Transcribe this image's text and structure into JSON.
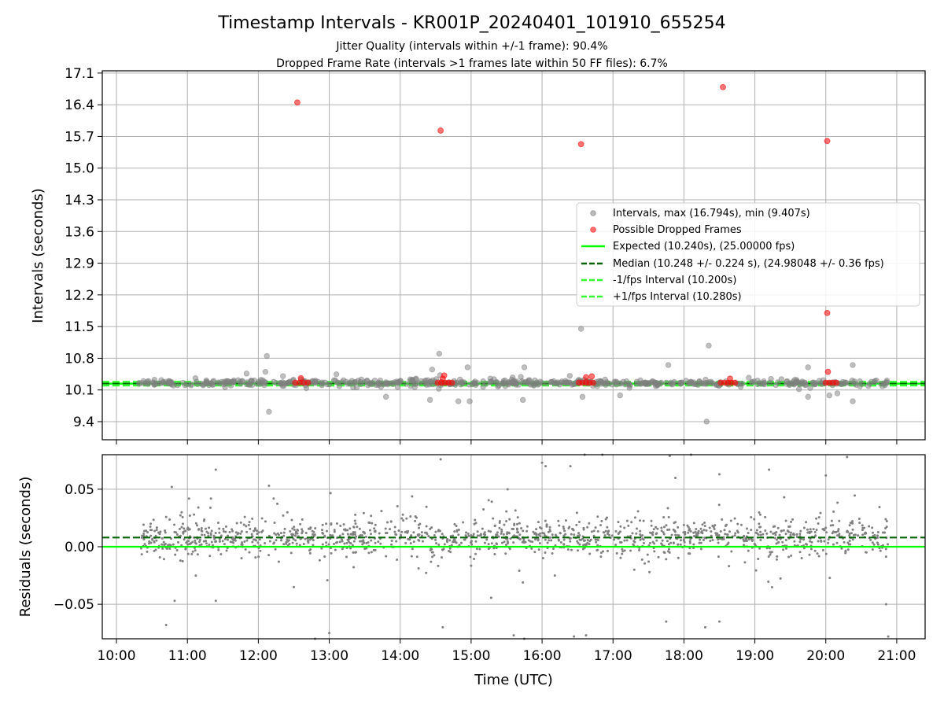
{
  "figure": {
    "title": "Timestamp Intervals - KR001P_20240401_101910_655254",
    "subtitle1": "Jitter Quality (intervals within +/-1 frame): 90.4%",
    "subtitle2": "Dropped Frame Rate (intervals >1 frames late within 50 FF files): 6.7%"
  },
  "chart_data": [
    {
      "type": "scatter",
      "panel": "top",
      "xlabel": "",
      "ylabel": "Intervals (seconds)",
      "x_unit": "hours UTC",
      "xlim": [
        9.8,
        21.4
      ],
      "ylim": [
        9.0,
        17.15
      ],
      "yticks": [
        "9.4",
        "10.1",
        "10.8",
        "11.5",
        "12.2",
        "12.9",
        "13.6",
        "14.3",
        "15.0",
        "15.7",
        "16.4",
        "17.1"
      ],
      "grid": true,
      "legend_position": "center-right",
      "legend": [
        {
          "label": "Intervals, max (16.794s), min (9.407s)",
          "kind": "marker",
          "color": "#808080"
        },
        {
          "label": "Possible Dropped Frames",
          "kind": "marker",
          "color": "#ff0000"
        },
        {
          "label": "Expected (10.240s), (25.00000 fps)",
          "kind": "solid",
          "color": "#00ff00"
        },
        {
          "label": "Median (10.248 +/- 0.224 s), (24.98048 +/- 0.36 fps)",
          "kind": "dashed",
          "color": "#006400"
        },
        {
          "label": "-1/fps Interval (10.200s)",
          "kind": "dashed",
          "color": "#32ff32"
        },
        {
          "label": "+1/fps Interval (10.280s)",
          "kind": "dashed",
          "color": "#32ff32"
        }
      ],
      "lines": [
        {
          "name": "expected",
          "y": 10.24,
          "style": "solid",
          "color": "#00ff00"
        },
        {
          "name": "median",
          "y": 10.248,
          "style": "dashed",
          "color": "#006400"
        },
        {
          "name": "minus-1fps",
          "y": 10.2,
          "style": "dashed",
          "color": "#32ff32"
        },
        {
          "name": "plus-1fps",
          "y": 10.28,
          "style": "dashed",
          "color": "#32ff32"
        }
      ],
      "series": [
        {
          "role": "intervals",
          "color": "#808080",
          "cluster": {
            "x_range": [
              10.32,
              20.88
            ],
            "y_center": 10.26,
            "y_spread": 0.09,
            "count": 560
          },
          "points": [
            [
              12.12,
              10.85
            ],
            [
              12.15,
              9.62
            ],
            [
              12.1,
              10.5
            ],
            [
              14.55,
              10.9
            ],
            [
              14.45,
              10.55
            ],
            [
              14.42,
              9.88
            ],
            [
              14.82,
              9.85
            ],
            [
              14.98,
              9.85
            ],
            [
              14.95,
              10.6
            ],
            [
              15.75,
              10.6
            ],
            [
              15.73,
              9.88
            ],
            [
              16.55,
              11.45
            ],
            [
              16.57,
              9.95
            ],
            [
              17.78,
              10.65
            ],
            [
              18.35,
              11.08
            ],
            [
              18.32,
              9.4
            ],
            [
              19.75,
              9.95
            ],
            [
              19.75,
              10.6
            ],
            [
              20.38,
              10.65
            ],
            [
              20.38,
              9.85
            ],
            [
              20.05,
              9.98
            ],
            [
              13.8,
              9.95
            ],
            [
              17.1,
              9.98
            ]
          ]
        },
        {
          "role": "dropped-frames",
          "color": "#ff0000",
          "points": [
            [
              12.55,
              16.45
            ],
            [
              14.57,
              15.83
            ],
            [
              16.55,
              15.53
            ],
            [
              18.55,
              16.79
            ],
            [
              20.02,
              15.6
            ],
            [
              20.02,
              11.8
            ],
            [
              20.03,
              10.5
            ],
            [
              12.6,
              10.36
            ],
            [
              14.62,
              10.42
            ],
            [
              14.6,
              10.35
            ],
            [
              16.62,
              10.38
            ],
            [
              16.7,
              10.4
            ],
            [
              18.65,
              10.35
            ],
            [
              12.52,
              10.26
            ],
            [
              12.58,
              10.26
            ],
            [
              12.64,
              10.26
            ],
            [
              12.7,
              10.26
            ],
            [
              14.53,
              10.26
            ],
            [
              14.58,
              10.26
            ],
            [
              14.63,
              10.26
            ],
            [
              14.68,
              10.26
            ],
            [
              14.73,
              10.26
            ],
            [
              16.52,
              10.26
            ],
            [
              16.57,
              10.26
            ],
            [
              16.62,
              10.26
            ],
            [
              16.67,
              10.26
            ],
            [
              16.72,
              10.26
            ],
            [
              18.52,
              10.26
            ],
            [
              18.57,
              10.26
            ],
            [
              18.62,
              10.26
            ],
            [
              18.67,
              10.26
            ],
            [
              18.72,
              10.26
            ],
            [
              20.0,
              10.26
            ],
            [
              20.05,
              10.26
            ],
            [
              20.1,
              10.26
            ],
            [
              20.15,
              10.26
            ]
          ]
        }
      ]
    },
    {
      "type": "scatter",
      "panel": "bottom",
      "xlabel": "Time (UTC)",
      "ylabel": "Residuals (seconds)",
      "x_unit": "hours UTC",
      "xlim": [
        9.8,
        21.4
      ],
      "ylim": [
        -0.08,
        0.08
      ],
      "yticks": [
        "−0.05",
        "0.00",
        "0.05"
      ],
      "ytick_values": [
        -0.05,
        0.0,
        0.05
      ],
      "xticks": [
        "10:00",
        "11:00",
        "12:00",
        "13:00",
        "14:00",
        "15:00",
        "16:00",
        "17:00",
        "18:00",
        "19:00",
        "20:00",
        "21:00"
      ],
      "xtick_values": [
        10,
        11,
        12,
        13,
        14,
        15,
        16,
        17,
        18,
        19,
        20,
        21
      ],
      "grid": true,
      "lines": [
        {
          "name": "zero",
          "y": 0.0,
          "style": "solid",
          "color": "#00ff00"
        },
        {
          "name": "median-offset",
          "y": 0.008,
          "style": "dashed",
          "color": "#006400"
        }
      ],
      "series": [
        {
          "role": "residuals",
          "color": "#808080",
          "cluster": {
            "x_range": [
              10.32,
              20.88
            ],
            "y_center": 0.008,
            "y_spread": 0.014,
            "count": 1400
          },
          "points": [
            [
              10.7,
              -0.068
            ],
            [
              10.78,
              0.052
            ],
            [
              10.82,
              -0.047
            ],
            [
              11.4,
              0.067
            ],
            [
              11.4,
              -0.047
            ],
            [
              12.15,
              0.053
            ],
            [
              12.5,
              -0.035
            ],
            [
              12.8,
              -0.08
            ],
            [
              13.0,
              -0.075
            ],
            [
              14.57,
              0.076
            ],
            [
              14.6,
              -0.07
            ],
            [
              15.6,
              -0.077
            ],
            [
              15.75,
              -0.08
            ],
            [
              16.0,
              0.073
            ],
            [
              16.05,
              0.07
            ],
            [
              16.4,
              0.07
            ],
            [
              16.45,
              -0.078
            ],
            [
              16.62,
              -0.077
            ],
            [
              16.6,
              0.08
            ],
            [
              16.85,
              0.08
            ],
            [
              17.3,
              -0.02
            ],
            [
              17.8,
              0.079
            ],
            [
              17.75,
              -0.065
            ],
            [
              18.1,
              0.08
            ],
            [
              18.3,
              -0.07
            ],
            [
              18.5,
              0.063
            ],
            [
              18.5,
              -0.065
            ],
            [
              19.2,
              0.067
            ],
            [
              20.3,
              0.078
            ],
            [
              20.88,
              -0.078
            ],
            [
              20.85,
              -0.05
            ],
            [
              20.0,
              0.062
            ]
          ]
        }
      ]
    }
  ]
}
